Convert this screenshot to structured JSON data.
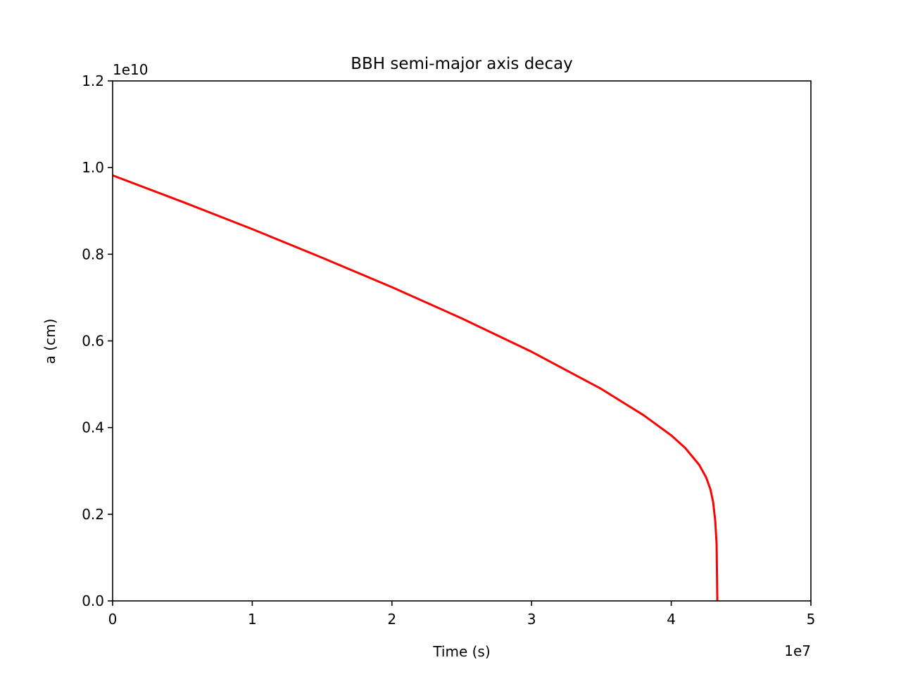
{
  "chart_data": {
    "type": "line",
    "title": "BBH semi-major axis decay",
    "xlabel": "Time (s)",
    "ylabel": "a (cm)",
    "x_offset_label": "1e7",
    "y_offset_label": "1e10",
    "xlim": [
      0,
      5
    ],
    "ylim": [
      0,
      1.2
    ],
    "x_scale_factor": 10000000,
    "y_scale_factor": 10000000000,
    "xticks": [
      0,
      1,
      2,
      3,
      4,
      5
    ],
    "xtick_labels": [
      "0",
      "1",
      "2",
      "3",
      "4",
      "5"
    ],
    "yticks": [
      0.0,
      0.2,
      0.4,
      0.6,
      0.8,
      1.0,
      1.2
    ],
    "ytick_labels": [
      "0.0",
      "0.2",
      "0.4",
      "0.6",
      "0.8",
      "1.0",
      "1.2"
    ],
    "grid": false,
    "series": [
      {
        "color": "#ff0000",
        "x": [
          0,
          0.5,
          1.0,
          1.5,
          2.0,
          2.5,
          3.0,
          3.5,
          3.8,
          4.0,
          4.1,
          4.2,
          4.25,
          4.28,
          4.3,
          4.315,
          4.325,
          4.33
        ],
        "y": [
          0.982,
          0.921,
          0.858,
          0.792,
          0.724,
          0.652,
          0.575,
          0.489,
          0.429,
          0.382,
          0.353,
          0.314,
          0.285,
          0.258,
          0.228,
          0.185,
          0.13,
          0.0
        ]
      }
    ]
  }
}
